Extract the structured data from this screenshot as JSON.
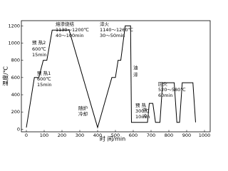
{
  "chart_data": {
    "type": "line",
    "xlabel": "时 间/min",
    "ylabel": "温度/℃",
    "xlim": [
      -28,
      1032
    ],
    "ylim": [
      -30,
      1260
    ],
    "xticks": [
      0,
      100,
      200,
      300,
      400,
      500,
      600,
      700,
      800,
      900,
      1000
    ],
    "yticks": [
      0,
      200,
      400,
      600,
      800,
      1000,
      1200
    ],
    "color": "#000000",
    "x": [
      0,
      45,
      70,
      95,
      115,
      145,
      240,
      400,
      480,
      500,
      515,
      530,
      555,
      585,
      590,
      680,
      690,
      710,
      725,
      750,
      765,
      830,
      845,
      860,
      875,
      935,
      950
    ],
    "values": [
      20,
      600,
      600,
      800,
      800,
      1150,
      1150,
      20,
      600,
      600,
      800,
      800,
      1200,
      1200,
      80,
      80,
      300,
      300,
      80,
      80,
      540,
      540,
      80,
      80,
      540,
      540,
      80
    ],
    "annotations": [
      "熔渗烧结",
      "1130～1200℃",
      "40～100min",
      "预 热2",
      "600℃",
      "15min",
      "预 热1",
      "600℃",
      "15min",
      "随炉",
      "冷却",
      "淬火",
      "1140～1260℃",
      "30～50min",
      "油",
      "淬",
      "预 热",
      "300℃",
      "10min",
      "空",
      "冷",
      "回火",
      "520～580℃",
      "60min"
    ]
  }
}
